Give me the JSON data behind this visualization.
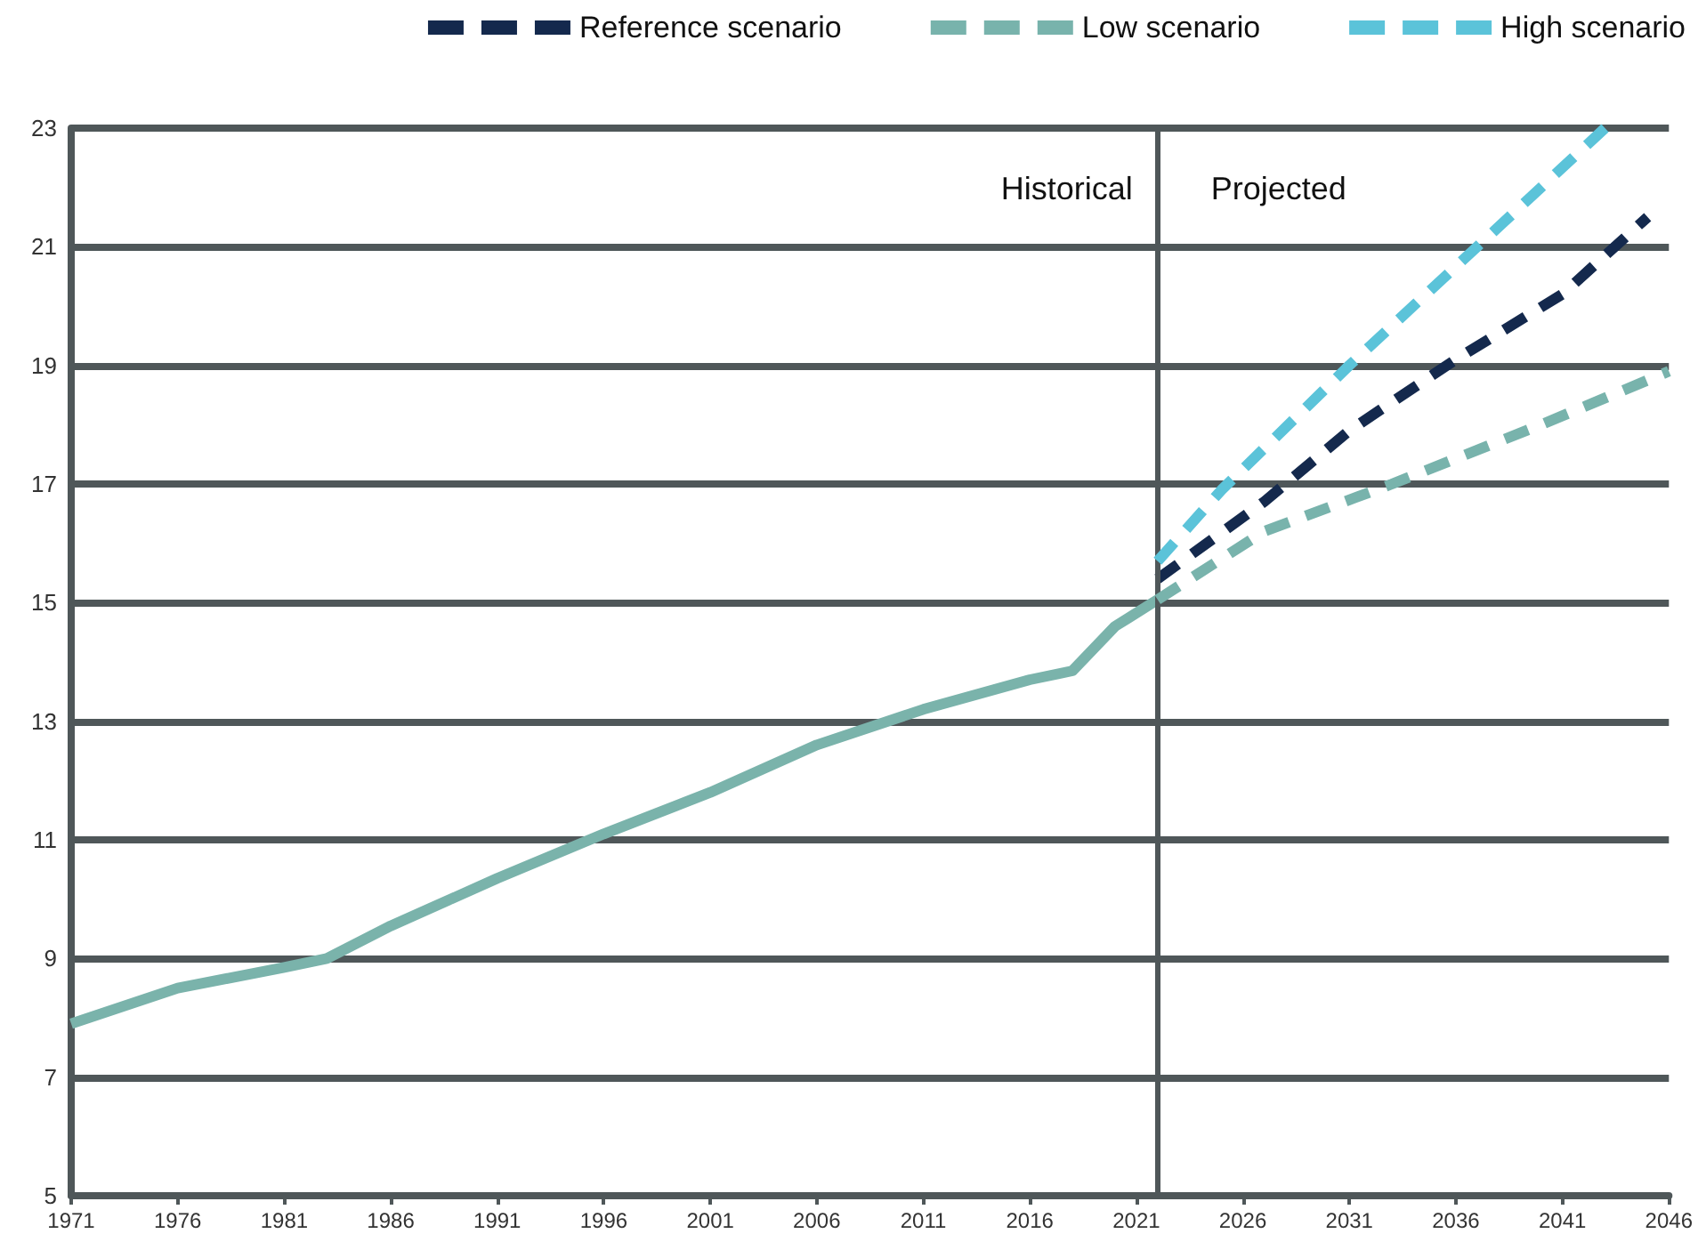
{
  "chart_data": {
    "type": "line",
    "xlim": [
      1971,
      2046
    ],
    "xticks": [
      1971,
      1976,
      1981,
      1986,
      1991,
      1996,
      2001,
      2006,
      2011,
      2016,
      2021,
      2026,
      2031,
      2036,
      2041,
      2046
    ],
    "ylim": [
      5,
      23
    ],
    "yticks": [
      5,
      7,
      9,
      11,
      13,
      15,
      17,
      19,
      21,
      23
    ],
    "grid": "y",
    "legend": "top right",
    "marker": "none",
    "series": [
      {
        "color": "#7ab3ab",
        "line_style": "solid",
        "x": [
          1971,
          1976,
          1981,
          1983,
          1986,
          1991,
          1996,
          2001,
          2006,
          2011,
          2016,
          2018,
          2020,
          2022
        ],
        "values": [
          7.9,
          8.5,
          8.85,
          9.0,
          9.55,
          10.35,
          11.1,
          11.8,
          12.6,
          13.2,
          13.7,
          13.85,
          14.6,
          15.05
        ]
      },
      {
        "name": "Reference scenario",
        "color": "#14294d",
        "line_style": "dashed",
        "x": [
          2022,
          2027,
          2031,
          2036,
          2041,
          2045
        ],
        "values": [
          15.4,
          16.7,
          17.9,
          19.1,
          20.2,
          21.5
        ]
      },
      {
        "name": "Low scenario",
        "color": "#78b3ac",
        "line_style": "dashed",
        "x": [
          2022,
          2027,
          2033,
          2040,
          2046
        ],
        "values": [
          15.05,
          16.2,
          17.0,
          18.0,
          18.9
        ]
      },
      {
        "name": "High scenario",
        "color": "#5bc3d9",
        "line_style": "dashed",
        "x": [
          2022,
          2025,
          2031,
          2037,
          2043
        ],
        "values": [
          15.7,
          16.9,
          19.0,
          21.0,
          23.0
        ]
      }
    ],
    "ref_lines": [
      {
        "axis": "x",
        "value": 2022,
        "color": "#4f5759"
      }
    ],
    "annotations": [
      "Historical",
      "Projected"
    ]
  }
}
